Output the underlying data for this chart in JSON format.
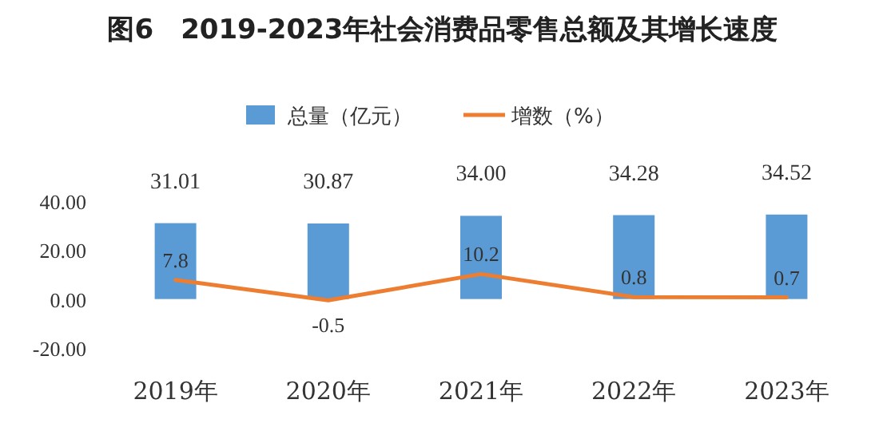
{
  "chart_data": {
    "type": "bar",
    "title": "图6　2019-2023年社会消费品零售总额及其增长速度",
    "categories": [
      "2019年",
      "2020年",
      "2021年",
      "2022年",
      "2023年"
    ],
    "series": [
      {
        "name": "总量（亿元）",
        "color": "#5b9bd5",
        "values": [
          31.01,
          30.87,
          34.0,
          34.28,
          34.52
        ],
        "value_labels": [
          "31.01",
          "30.87",
          "34.00",
          "34.28",
          "34.52"
        ]
      },
      {
        "name": "增数（%）",
        "type": "line",
        "color": "#ed7d31",
        "values": [
          7.8,
          -0.5,
          10.2,
          0.8,
          0.7
        ],
        "value_labels": [
          "7.8",
          "-0.5",
          "10.2",
          "0.8",
          "0.7"
        ]
      }
    ],
    "ylim": [
      -20,
      40
    ],
    "yticks": [
      {
        "value": -20,
        "label": "-20.00"
      },
      {
        "value": 0,
        "label": "0.00"
      },
      {
        "value": 20,
        "label": "20.00"
      },
      {
        "value": 40,
        "label": "40.00"
      }
    ],
    "legend": "top",
    "grid": false,
    "marker": "none",
    "line_style": "solid"
  }
}
